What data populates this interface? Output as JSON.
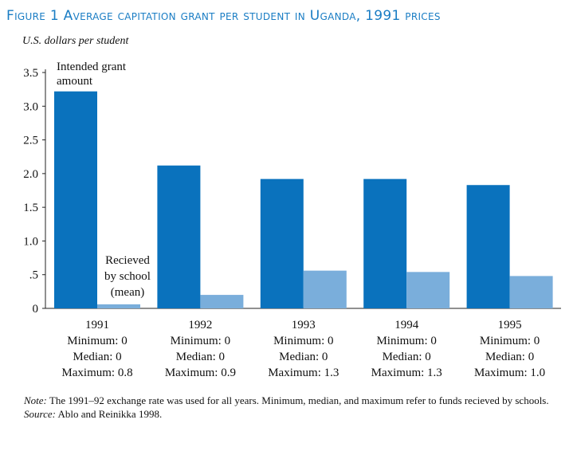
{
  "title": "Figure 1 Average capitation grant per student in Uganda, 1991 prices",
  "unit_label": "U.S. dollars per student",
  "colors": {
    "intended": "#0a72bd",
    "received": "#7aaedb",
    "title": "#1a7dc4"
  },
  "chart_data": {
    "type": "bar",
    "categories": [
      "1991",
      "1992",
      "1993",
      "1994",
      "1995"
    ],
    "category_details": [
      [
        "Minimum: 0",
        "Median: 0",
        "Maximum: 0.8"
      ],
      [
        "Minimum: 0",
        "Median: 0",
        "Maximum: 0.9"
      ],
      [
        "Minimum: 0",
        "Median: 0",
        "Maximum: 1.3"
      ],
      [
        "Minimum: 0",
        "Median: 0",
        "Maximum: 1.3"
      ],
      [
        "Minimum: 0",
        "Median: 0",
        "Maximum: 1.0"
      ]
    ],
    "series": [
      {
        "name": "Intended grant amount",
        "values": [
          3.22,
          2.12,
          1.92,
          1.92,
          1.83
        ]
      },
      {
        "name": "Recieved by school (mean)",
        "values": [
          0.06,
          0.2,
          0.56,
          0.54,
          0.48
        ]
      }
    ],
    "series_label_lines": [
      [
        "Intended grant",
        "amount"
      ],
      [
        "Recieved",
        "by school",
        "(mean)"
      ]
    ],
    "ylim": [
      0,
      3.5
    ],
    "yticks": [
      0,
      0.5,
      1.0,
      1.5,
      2.0,
      2.5,
      3.0,
      3.5
    ],
    "ytick_labels": [
      "0",
      ".5",
      "1.0",
      "1.5",
      "2.0",
      "2.5",
      "3.0",
      "3.5"
    ],
    "grid": false,
    "legend": "inline labels"
  },
  "note": {
    "note_label": "Note:",
    "note_text": "The 1991–92 exchange rate was used for all years. Minimum, median, and maximum refer to funds recieved by schools.",
    "source_label": "Source:",
    "source_text": "Ablo and Reinikka 1998."
  }
}
